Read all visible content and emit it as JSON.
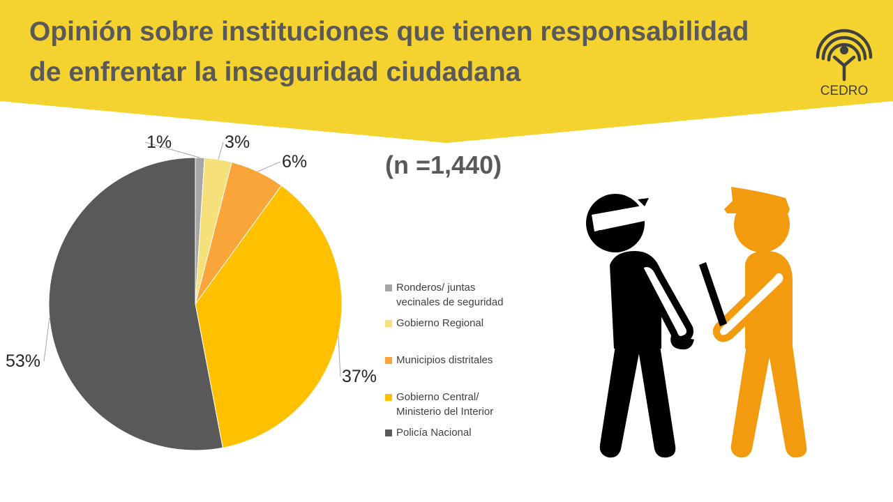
{
  "header": {
    "title_line1": "Opinión sobre instituciones que tienen responsabilidad",
    "title_line2": "de enfrentar la inseguridad ciudadana",
    "logo_text": "CEDRO"
  },
  "sample_label": "(n =1,440)",
  "colors": {
    "banner": "#F4D22F",
    "title": "#595959",
    "police_figure": "#F29B0E",
    "thief_figure": "#000000"
  },
  "chart_data": {
    "type": "pie",
    "labels": [
      "Ronderos/ juntas vecinales de seguridad",
      "Gobierno Regional",
      "Municipios distritales",
      "Gobierno Central/ Ministerio del Interior",
      "Policía Nacional"
    ],
    "values": [
      1,
      3,
      6,
      37,
      53
    ],
    "value_labels": [
      "1%",
      "3%",
      "6%",
      "37%",
      "53%"
    ],
    "colors": [
      "#A6A6A6",
      "#F5E07A",
      "#F9A53A",
      "#FFC000",
      "#595959"
    ],
    "start": "12 o'clock",
    "direction": "clockwise",
    "legend_position": "right"
  },
  "legend": {
    "items": [
      {
        "label_lines": [
          "Ronderos/ juntas",
          "vecinales de seguridad"
        ]
      },
      {
        "label_lines": [
          "Gobierno Regional"
        ]
      },
      {
        "label_lines": [
          "Municipios distritales"
        ]
      },
      {
        "label_lines": [
          "Gobierno Central/",
          "Ministerio del Interior"
        ]
      },
      {
        "label_lines": [
          "Policía Nacional"
        ]
      }
    ]
  },
  "illustration": {
    "figures": [
      "thief-figure",
      "police-figure"
    ]
  }
}
